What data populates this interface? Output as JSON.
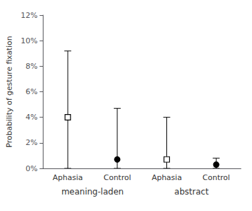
{
  "chart_data": {
    "type": "scatter",
    "ylabel": "Probability of gesture fixation",
    "categories": [
      "Aphasia",
      "Control",
      "Aphasia",
      "Control"
    ],
    "series": [
      {
        "marker": "square_open",
        "color": "#000000",
        "values": [
          0.04,
          null,
          0.007,
          null
        ],
        "err_upper": [
          0.052,
          null,
          0.033,
          null
        ],
        "err_lower": [
          0.04,
          null,
          0.007,
          null
        ]
      },
      {
        "marker": "circle_filled",
        "color": "#000000",
        "values": [
          null,
          0.007,
          null,
          0.003
        ],
        "err_upper": [
          null,
          0.04,
          null,
          0.005
        ],
        "err_lower": [
          null,
          0.007,
          null,
          0.003
        ]
      }
    ],
    "annotations": [
      "meaning-laden",
      "abstract"
    ],
    "ylim": [
      0.0,
      0.12
    ],
    "yticks": [
      {
        "value": 0.0,
        "label": "0%"
      },
      {
        "value": 0.02,
        "label": "2%"
      },
      {
        "value": 0.04,
        "label": "4%"
      },
      {
        "value": 0.06,
        "label": "6%"
      },
      {
        "value": 0.08,
        "label": "8%"
      },
      {
        "value": 0.1,
        "label": "10%"
      },
      {
        "value": 0.12,
        "label": "12%"
      }
    ],
    "grid": false
  }
}
